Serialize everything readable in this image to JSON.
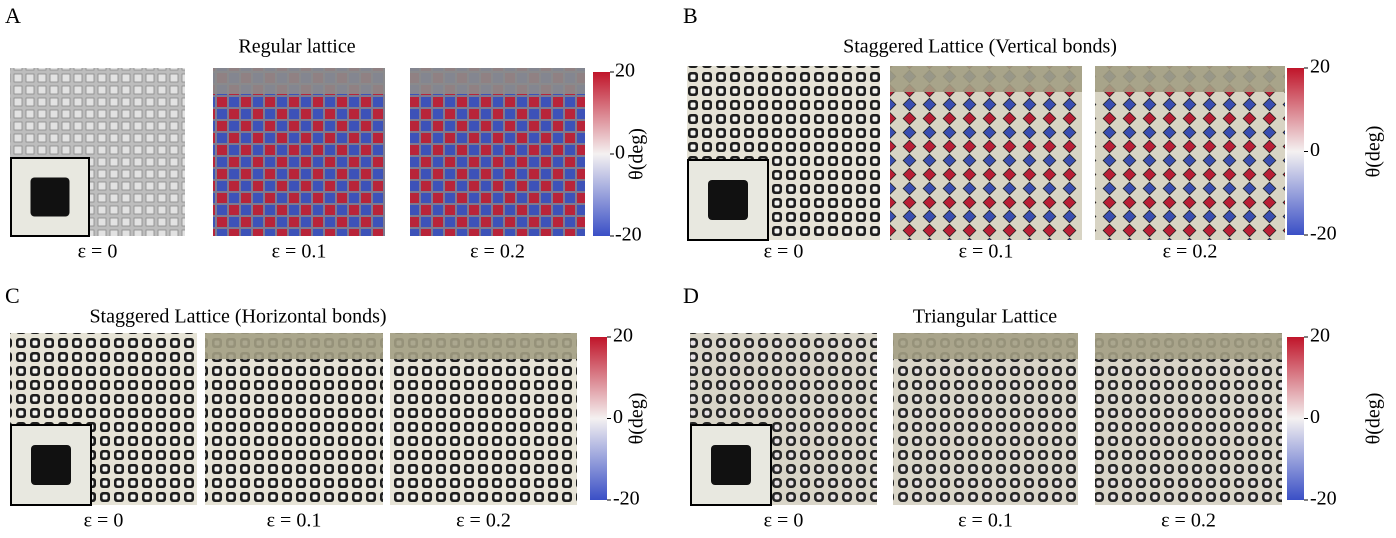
{
  "panels": [
    {
      "letter": "A",
      "title": "Regular lattice",
      "images": [
        {
          "label": "ε = 0"
        },
        {
          "label": "ε = 0.1"
        },
        {
          "label": "ε = 0.2"
        }
      ],
      "colorbar": {
        "label": "θ(deg)",
        "ticks": [
          20,
          0,
          -20
        ]
      }
    },
    {
      "letter": "B",
      "title": "Staggered Lattice (Vertical bonds)",
      "images": [
        {
          "label": "ε = 0"
        },
        {
          "label": "ε = 0.1"
        },
        {
          "label": "ε = 0.2"
        }
      ],
      "colorbar": {
        "label": "θ(deg)",
        "ticks": [
          20,
          0,
          -20
        ]
      }
    },
    {
      "letter": "C",
      "title": "Staggered Lattice (Horizontal bonds)",
      "images": [
        {
          "label": "ε = 0"
        },
        {
          "label": "ε = 0.1"
        },
        {
          "label": "ε = 0.2"
        }
      ],
      "colorbar": {
        "label": "θ(deg)",
        "ticks": [
          20,
          0,
          -20
        ]
      }
    },
    {
      "letter": "D",
      "title": "Triangular Lattice",
      "images": [
        {
          "label": "ε = 0"
        },
        {
          "label": "ε = 0.1"
        },
        {
          "label": "ε = 0.2"
        }
      ],
      "colorbar": {
        "label": "θ(deg)",
        "ticks": [
          20,
          0,
          -20
        ]
      }
    }
  ]
}
